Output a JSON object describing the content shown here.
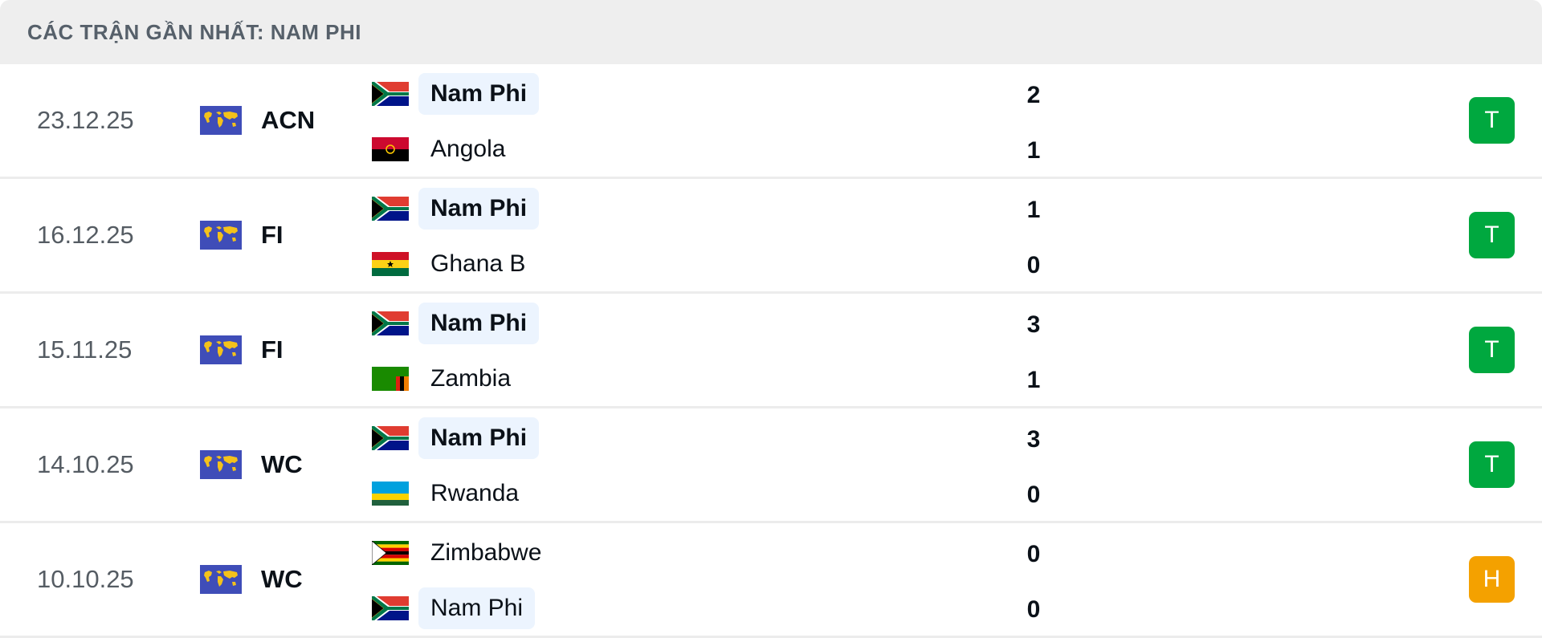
{
  "header": {
    "title": "CÁC TRẬN GẦN NHẤT: NAM PHI"
  },
  "colors": {
    "win": "#00a83f",
    "draw": "#f4a100",
    "highlight": "#ecf4fe"
  },
  "matches": [
    {
      "date": "23.12.25",
      "competition": "ACN",
      "competition_icon": "world-map-icon",
      "home": {
        "name": "Nam Phi",
        "flag": "south-africa",
        "highlight": true,
        "bold": true
      },
      "away": {
        "name": "Angola",
        "flag": "angola",
        "highlight": false,
        "bold": false
      },
      "home_score": "2",
      "away_score": "1",
      "result": "T",
      "result_type": "win"
    },
    {
      "date": "16.12.25",
      "competition": "FI",
      "competition_icon": "world-map-icon",
      "home": {
        "name": "Nam Phi",
        "flag": "south-africa",
        "highlight": true,
        "bold": true
      },
      "away": {
        "name": "Ghana B",
        "flag": "ghana",
        "highlight": false,
        "bold": false
      },
      "home_score": "1",
      "away_score": "0",
      "result": "T",
      "result_type": "win"
    },
    {
      "date": "15.11.25",
      "competition": "FI",
      "competition_icon": "world-map-icon",
      "home": {
        "name": "Nam Phi",
        "flag": "south-africa",
        "highlight": true,
        "bold": true
      },
      "away": {
        "name": "Zambia",
        "flag": "zambia",
        "highlight": false,
        "bold": false
      },
      "home_score": "3",
      "away_score": "1",
      "result": "T",
      "result_type": "win"
    },
    {
      "date": "14.10.25",
      "competition": "WC",
      "competition_icon": "world-map-icon",
      "home": {
        "name": "Nam Phi",
        "flag": "south-africa",
        "highlight": true,
        "bold": true
      },
      "away": {
        "name": "Rwanda",
        "flag": "rwanda",
        "highlight": false,
        "bold": false
      },
      "home_score": "3",
      "away_score": "0",
      "result": "T",
      "result_type": "win"
    },
    {
      "date": "10.10.25",
      "competition": "WC",
      "competition_icon": "world-map-icon",
      "home": {
        "name": "Zimbabwe",
        "flag": "zimbabwe",
        "highlight": false,
        "bold": false
      },
      "away": {
        "name": "Nam Phi",
        "flag": "south-africa",
        "highlight": true,
        "bold": false
      },
      "home_score": "0",
      "away_score": "0",
      "result": "H",
      "result_type": "draw"
    }
  ]
}
